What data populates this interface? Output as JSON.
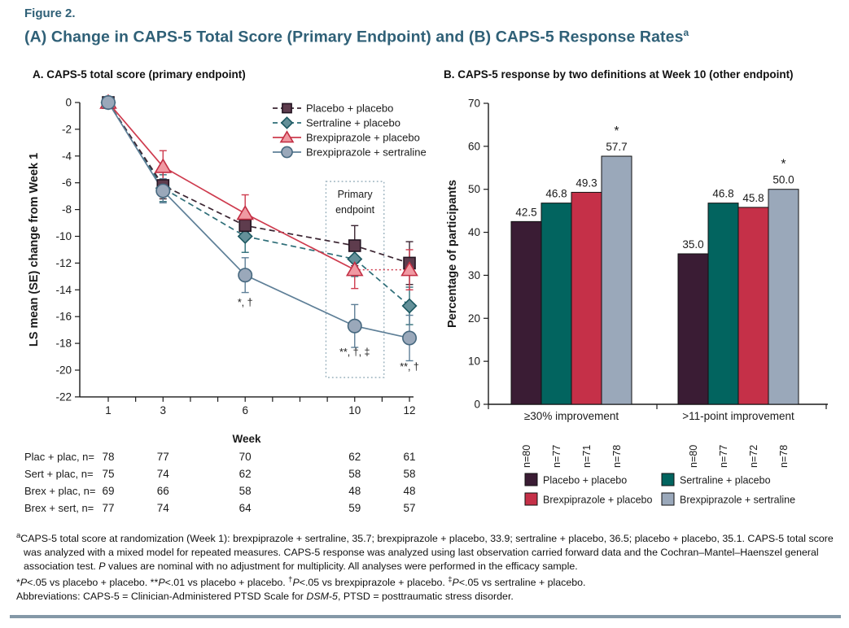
{
  "header": {
    "figure_label": "Figure 2.",
    "title": "(A) Change in CAPS-5 Total Score (Primary Endpoint) and (B) CAPS-5 Response Rates",
    "title_sup": "a"
  },
  "colors": {
    "heading": "#2f6077",
    "rule": "#8498a7",
    "text": "#1a1a1a"
  },
  "chart_data": [
    {
      "type": "line",
      "panel": "A",
      "title": "A. CAPS-5 total score (primary endpoint)",
      "xlabel": "Week",
      "ylabel": "LS mean (SE) change from Week 1",
      "ylim": [
        -22,
        0
      ],
      "ytick_step": 2,
      "xticks": [
        1,
        2,
        3,
        4,
        5,
        6,
        7,
        8,
        9,
        10,
        11,
        12
      ],
      "xtick_labels": [
        1,
        3,
        6,
        10,
        12
      ],
      "x": [
        1,
        3,
        6,
        10,
        12
      ],
      "series": [
        {
          "name": "Placebo + placebo",
          "marker": "square",
          "dash": true,
          "line_color": "#3b2532",
          "marker_fill": "#5e3c4d",
          "marker_stroke": "#241522",
          "values": [
            0,
            -6.2,
            -9.2,
            -10.7,
            -12.0
          ],
          "se": [
            0,
            1.0,
            1.0,
            1.5,
            1.6
          ]
        },
        {
          "name": "Sertraline + placebo",
          "marker": "diamond",
          "dash": true,
          "line_color": "#2e6e78",
          "marker_fill": "#649099",
          "marker_stroke": "#1d5962",
          "values": [
            0,
            -6.4,
            -10.0,
            -11.7,
            -15.2
          ],
          "se": [
            0,
            1.0,
            1.2,
            1.3,
            1.4
          ]
        },
        {
          "name": "Brexpiprazole + placebo",
          "marker": "triangle",
          "dash": false,
          "dotted_last_segment": true,
          "line_color": "#ce3b4e",
          "marker_fill": "#f099a2",
          "marker_stroke": "#c32f44",
          "values": [
            0,
            -4.8,
            -8.3,
            -12.5,
            -12.5
          ],
          "se": [
            0,
            1.2,
            1.4,
            1.4,
            1.5
          ]
        },
        {
          "name": "Brexpiprazole + sertraline",
          "marker": "circle",
          "dash": false,
          "line_color": "#5e7f97",
          "marker_fill": "#9aa8ba",
          "marker_stroke": "#46687f",
          "values": [
            0,
            -6.6,
            -12.9,
            -16.7,
            -17.6
          ],
          "se": [
            0,
            0.9,
            1.3,
            1.6,
            1.7
          ]
        }
      ],
      "draw_order": [
        1,
        0,
        2,
        3
      ],
      "annotations": [
        {
          "text": "*, †",
          "week": 6,
          "value": -15.2
        },
        {
          "text": "**, †, ‡",
          "week": 10,
          "value": -18.9
        },
        {
          "text": "**, †",
          "week": 12,
          "value": -20.0
        }
      ],
      "endpoint_box": {
        "label_lines": [
          "Primary",
          "endpoint"
        ],
        "week_from": 8.95,
        "week_to": 11.07,
        "value_top": -5.9,
        "value_bottom": -20.55
      }
    },
    {
      "type": "bar",
      "panel": "B",
      "title": "B. CAPS-5 response by two definitions at Week 10 (other endpoint)",
      "ylabel": "Percentage of participants",
      "ylim": [
        0,
        70
      ],
      "ytick_step": 10,
      "categories": [
        "≥30% improvement",
        ">11-point improvement"
      ],
      "series": [
        {
          "name": "Placebo + placebo",
          "color": "#3a1c34",
          "values": [
            42.5,
            35.0
          ],
          "n": [
            "n=80",
            "n=80"
          ],
          "sig": [
            "",
            ""
          ]
        },
        {
          "name": "Sertraline + placebo",
          "color": "#02645f",
          "values": [
            46.8,
            46.8
          ],
          "n": [
            "n=77",
            "n=77"
          ],
          "sig": [
            "",
            ""
          ]
        },
        {
          "name": "Brexpiprazole + placebo",
          "color": "#c53048",
          "values": [
            49.3,
            45.8
          ],
          "n": [
            "n=71",
            "n=72"
          ],
          "sig": [
            "",
            ""
          ]
        },
        {
          "name": "Brexpiprazole + sertraline",
          "color": "#9aa8ba",
          "values": [
            57.7,
            50.0
          ],
          "n": [
            "n=78",
            "n=78"
          ],
          "sig": [
            "*",
            "*"
          ]
        }
      ],
      "legend_columns": [
        [
          0,
          2
        ],
        [
          1,
          3
        ]
      ]
    }
  ],
  "n_table": {
    "header": "Week",
    "rows": [
      {
        "label": "Plac + plac, n=",
        "values": [
          78,
          77,
          70,
          62,
          61
        ]
      },
      {
        "label": "Sert + plac, n=",
        "values": [
          75,
          74,
          62,
          58,
          58
        ]
      },
      {
        "label": "Brex + plac, n=",
        "values": [
          69,
          66,
          58,
          48,
          48
        ]
      },
      {
        "label": "Brex + sert, n=",
        "values": [
          77,
          74,
          64,
          59,
          57
        ]
      }
    ]
  },
  "footnotes": {
    "a": {
      "sup": "a",
      "text1": "CAPS-5 total score at randomization (Week 1): brexpiprazole + sertraline, 35.7; brexpiprazole + placebo, 33.9; sertraline + placebo, 36.5; placebo + placebo, 35.1. CAPS-5 total score was analyzed with a mixed model for repeated measures. CAPS-5 response was analyzed using last observation carried forward data and the Cochran–Mantel–Haenszel general association test. ",
      "p": "P",
      "text2": " values are nominal with no adjustment for multiplicity. All analyses were performed in the efficacy sample."
    },
    "sig_notes": [
      {
        "marker": "*",
        "sup": false,
        "p": "P",
        "text": "<.05 vs placebo + placebo. "
      },
      {
        "marker": "**",
        "sup": false,
        "p": "P",
        "text": "<.01 vs placebo + placebo. "
      },
      {
        "marker": "†",
        "sup": true,
        "p": "P",
        "text": "<.05 vs brexpiprazole + placebo. "
      },
      {
        "marker": "‡",
        "sup": true,
        "p": "P",
        "text": "<.05 vs sertraline + placebo."
      }
    ],
    "abbrev": {
      "text1": "Abbreviations: CAPS-5 = Clinician-Administered PTSD Scale for ",
      "italic": "DSM-5",
      "text2": ", PTSD = posttraumatic stress disorder."
    }
  }
}
